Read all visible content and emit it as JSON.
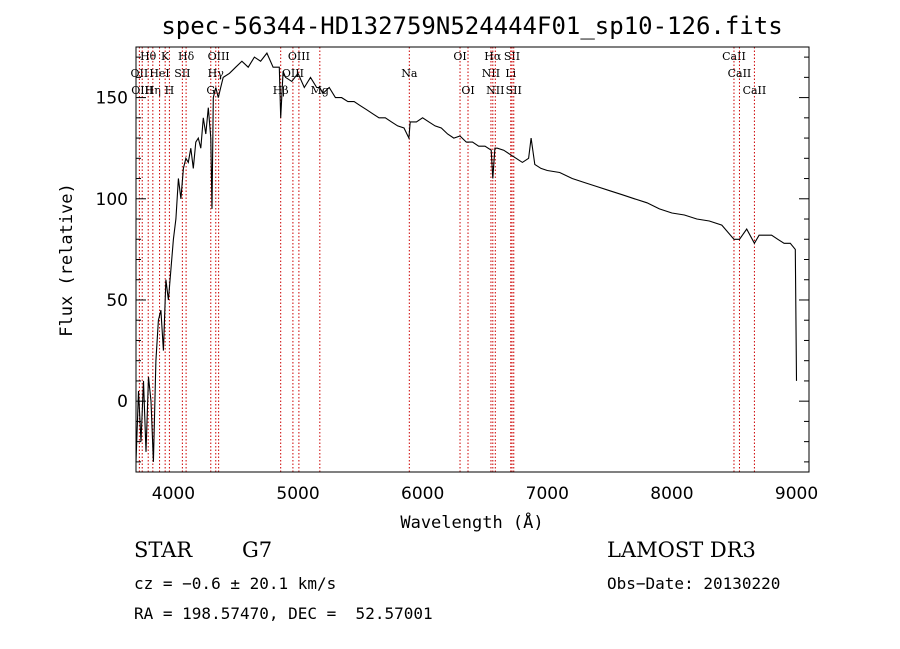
{
  "chart_data": {
    "type": "line",
    "title": "spec-56344-HD132759N524444F01_sp10-126.fits",
    "xlabel": "Wavelength (Å)",
    "ylabel": "Flux (relative)",
    "xlim": [
      3700,
      9100
    ],
    "ylim": [
      -35,
      175
    ],
    "xticks": [
      4000,
      5000,
      6000,
      7000,
      8000,
      9000
    ],
    "yticks": [
      0,
      50,
      100,
      150
    ],
    "line_color": "#000000",
    "marker_color": "#cc0000",
    "series": [
      {
        "x": [
          3700,
          3720,
          3740,
          3760,
          3780,
          3800,
          3820,
          3840,
          3860,
          3880,
          3900,
          3920,
          3940,
          3960,
          3980,
          4000,
          4020,
          4040,
          4060,
          4080,
          4100,
          4120,
          4140,
          4160,
          4180,
          4200,
          4220,
          4240,
          4260,
          4280,
          4300,
          4310,
          4320,
          4340,
          4360,
          4380,
          4400,
          4450,
          4500,
          4550,
          4600,
          4650,
          4700,
          4750,
          4800,
          4850,
          4861,
          4880,
          4900,
          4950,
          5000,
          5050,
          5100,
          5150,
          5175,
          5200,
          5250,
          5300,
          5350,
          5400,
          5450,
          5500,
          5550,
          5600,
          5650,
          5700,
          5750,
          5800,
          5850,
          5890,
          5900,
          5950,
          6000,
          6050,
          6100,
          6150,
          6200,
          6250,
          6300,
          6350,
          6400,
          6450,
          6500,
          6550,
          6563,
          6580,
          6600,
          6650,
          6700,
          6750,
          6800,
          6850,
          6870,
          6900,
          6950,
          7000,
          7100,
          7200,
          7300,
          7400,
          7500,
          7600,
          7700,
          7800,
          7900,
          8000,
          8100,
          8200,
          8300,
          8400,
          8498,
          8542,
          8600,
          8662,
          8700,
          8800,
          8850,
          8900,
          8950,
          8990,
          9000
        ],
        "values": [
          -30,
          5,
          -20,
          10,
          -25,
          12,
          0,
          -30,
          20,
          40,
          45,
          25,
          60,
          50,
          65,
          80,
          90,
          110,
          100,
          115,
          120,
          118,
          125,
          115,
          128,
          130,
          125,
          140,
          132,
          145,
          130,
          95,
          150,
          155,
          150,
          155,
          160,
          162,
          165,
          168,
          165,
          170,
          168,
          172,
          165,
          165,
          140,
          163,
          160,
          158,
          162,
          155,
          160,
          155,
          155,
          152,
          155,
          150,
          150,
          148,
          148,
          146,
          144,
          142,
          140,
          140,
          138,
          136,
          135,
          130,
          138,
          138,
          140,
          138,
          136,
          135,
          132,
          130,
          131,
          128,
          128,
          126,
          126,
          124,
          110,
          125,
          125,
          124,
          122,
          120,
          118,
          120,
          130,
          117,
          115,
          114,
          113,
          110,
          108,
          106,
          104,
          102,
          100,
          98,
          95,
          93,
          92,
          90,
          89,
          87,
          80,
          80,
          85,
          78,
          82,
          82,
          80,
          78,
          78,
          75,
          10
        ]
      }
    ],
    "line_markers": [
      {
        "wavelength": 3727,
        "labels": [
          {
            "text": "OII",
            "row": 1
          }
        ]
      },
      {
        "wavelength": 3750,
        "labels": [
          {
            "text": "OIII",
            "row": 2
          }
        ]
      },
      {
        "wavelength": 3798,
        "labels": [
          {
            "text": "Hθ",
            "row": 0
          }
        ]
      },
      {
        "wavelength": 3835,
        "labels": [
          {
            "text": "Hη",
            "row": 2
          }
        ]
      },
      {
        "wavelength": 3889,
        "labels": [
          {
            "text": "HeI",
            "row": 1
          }
        ]
      },
      {
        "wavelength": 3934,
        "labels": [
          {
            "text": "K",
            "row": 0
          }
        ]
      },
      {
        "wavelength": 3968,
        "labels": [
          {
            "text": "H",
            "row": 2
          }
        ]
      },
      {
        "wavelength": 4072,
        "labels": [
          {
            "text": "SII",
            "row": 1
          }
        ]
      },
      {
        "wavelength": 4102,
        "labels": [
          {
            "text": "Hδ",
            "row": 0
          }
        ]
      },
      {
        "wavelength": 4300,
        "labels": [
          {
            "text": "G",
            "row": 2
          }
        ]
      },
      {
        "wavelength": 4340,
        "labels": [
          {
            "text": "Hγ",
            "row": 1
          }
        ]
      },
      {
        "wavelength": 4363,
        "labels": [
          {
            "text": "OIII",
            "row": 0
          }
        ]
      },
      {
        "wavelength": 4861,
        "labels": [
          {
            "text": "Hβ",
            "row": 2
          }
        ]
      },
      {
        "wavelength": 4959,
        "labels": [
          {
            "text": "OIII",
            "row": 1
          }
        ]
      },
      {
        "wavelength": 5007,
        "labels": [
          {
            "text": "OIII",
            "row": 0
          }
        ]
      },
      {
        "wavelength": 5175,
        "labels": [
          {
            "text": "Mg",
            "row": 2
          }
        ]
      },
      {
        "wavelength": 5893,
        "labels": [
          {
            "text": "Na",
            "row": 1
          }
        ]
      },
      {
        "wavelength": 6300,
        "labels": [
          {
            "text": "OI",
            "row": 0
          }
        ]
      },
      {
        "wavelength": 6364,
        "labels": [
          {
            "text": "OI",
            "row": 2
          }
        ]
      },
      {
        "wavelength": 6548,
        "labels": [
          {
            "text": "NII",
            "row": 1
          }
        ]
      },
      {
        "wavelength": 6563,
        "labels": [
          {
            "text": "Hα",
            "row": 0
          }
        ]
      },
      {
        "wavelength": 6583,
        "labels": [
          {
            "text": "NII",
            "row": 2
          }
        ]
      },
      {
        "wavelength": 6707,
        "labels": [
          {
            "text": "Li",
            "row": 1
          }
        ]
      },
      {
        "wavelength": 6717,
        "labels": [
          {
            "text": "SII",
            "row": 0
          }
        ]
      },
      {
        "wavelength": 6731,
        "labels": [
          {
            "text": "SII",
            "row": 2
          }
        ]
      },
      {
        "wavelength": 8498,
        "labels": [
          {
            "text": "CaII",
            "row": 0
          }
        ]
      },
      {
        "wavelength": 8542,
        "labels": [
          {
            "text": "CaII",
            "row": 1
          }
        ]
      },
      {
        "wavelength": 8662,
        "labels": [
          {
            "text": "CaII",
            "row": 2
          }
        ]
      }
    ]
  },
  "info": {
    "class": "STAR",
    "subclass": "G7",
    "survey": "LAMOST DR3",
    "cz": "cz = −0.6 ± 20.1 km/s",
    "obs_date": "Obs−Date: 20130220",
    "radec": "RA = 198.57470, DEC =  52.57001"
  }
}
